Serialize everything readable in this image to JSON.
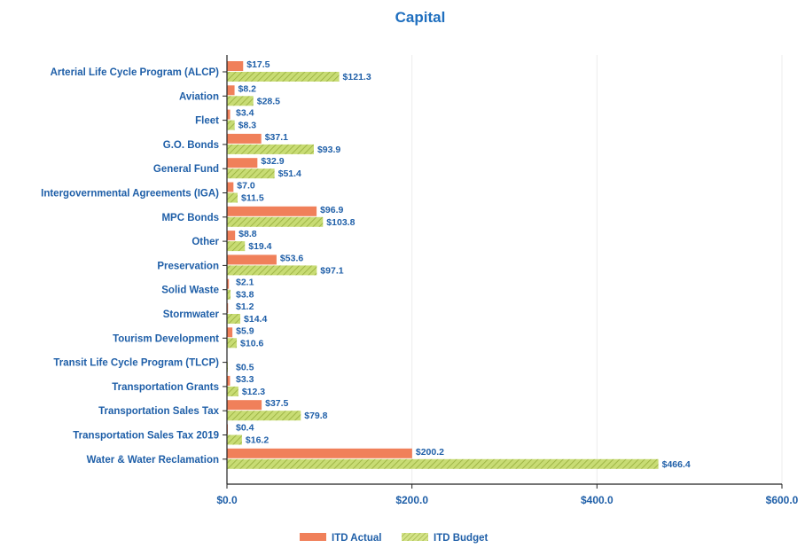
{
  "chart_data": {
    "type": "bar",
    "orientation": "horizontal",
    "title": "Capital",
    "categories": [
      "Arterial Life Cycle Program (ALCP)",
      "Aviation",
      "Fleet",
      "G.O. Bonds",
      "General Fund",
      "Intergovernmental Agreements (IGA)",
      "MPC Bonds",
      "Other",
      "Preservation",
      "Solid Waste",
      "Stormwater",
      "Tourism Development",
      "Transit Life Cycle Program (TLCP)",
      "Transportation Grants",
      "Transportation Sales Tax",
      "Transportation Sales Tax 2019",
      "Water & Water Reclamation"
    ],
    "series": [
      {
        "name": "ITD Actual",
        "color": "#f0805a",
        "values": [
          17.5,
          8.2,
          3.4,
          37.1,
          32.9,
          7.0,
          96.9,
          8.8,
          53.6,
          2.1,
          1.2,
          5.9,
          0,
          3.3,
          37.5,
          0.4,
          200.2
        ],
        "labels": [
          "$17.5",
          "$8.2",
          "$3.4",
          "$37.1",
          "$32.9",
          "$7.0",
          "$96.9",
          "$8.8",
          "$53.6",
          "$2.1",
          "$1.2",
          "$5.9",
          "",
          "$3.3",
          "$37.5",
          "$0.4",
          "$200.2"
        ]
      },
      {
        "name": "ITD Budget",
        "color": "#b9d05a",
        "values": [
          121.3,
          28.5,
          8.3,
          93.9,
          51.4,
          11.5,
          103.8,
          19.4,
          97.1,
          3.8,
          14.4,
          10.6,
          0.5,
          12.3,
          79.8,
          16.2,
          466.4
        ],
        "labels": [
          "$121.3",
          "$28.5",
          "$8.3",
          "$93.9",
          "$51.4",
          "$11.5",
          "$103.8",
          "$19.4",
          "$97.1",
          "$3.8",
          "$14.4",
          "$10.6",
          "$0.5",
          "$12.3",
          "$79.8",
          "$16.2",
          "$466.4"
        ]
      }
    ],
    "xlim": [
      0,
      600
    ],
    "xticks": [
      0,
      200,
      400,
      600
    ],
    "xtick_labels": [
      "$0.0",
      "$200.0",
      "$400.0",
      "$600.0"
    ],
    "grid": true,
    "legend_position": "bottom-center"
  },
  "legend": {
    "actual_label": "ITD Actual",
    "budget_label": "ITD Budget"
  }
}
